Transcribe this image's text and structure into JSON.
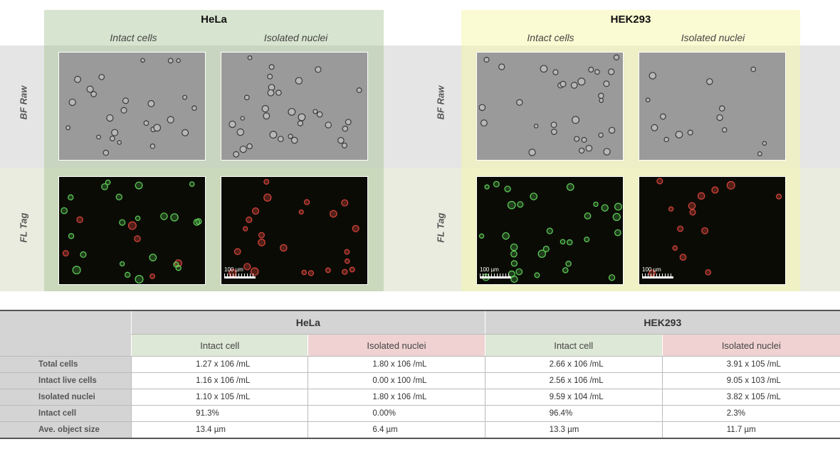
{
  "figure": {
    "panels": [
      {
        "title": "HeLa",
        "col_heads": [
          "Intact cells",
          "Isolated nuclei"
        ]
      },
      {
        "title": "HEK293",
        "col_heads": [
          "Intact cells",
          "Isolated nuclei"
        ]
      }
    ],
    "row_labels": {
      "bf": "BF Raw",
      "fl": "FL Tag"
    },
    "scale_label": "100 µm",
    "colors": {
      "green_marker": "#5fd35a",
      "red_marker": "#d9453c",
      "bf_background": "#9a9a9a"
    }
  },
  "table": {
    "groups": [
      "HeLa",
      "HEK293"
    ],
    "subheads": [
      "Intact cell",
      "Isolated nuclei",
      "Intact cell",
      "Isolated nuclei"
    ],
    "rows": [
      {
        "label": "Total cells",
        "values": [
          "1.27 x 106 /mL",
          "1.80 x 106 /mL",
          "2.66 x 106 /mL",
          "3.91 x 105 /mL"
        ]
      },
      {
        "label": "Intact live cells",
        "values": [
          "1.16 x 106 /mL",
          "0.00 x 100 /mL",
          "2.56 x 106 /mL",
          "9.05 x 103 /mL"
        ]
      },
      {
        "label": "Isolated nuclei",
        "values": [
          "1.10 x 105 /mL",
          "1.80 x 106 /mL",
          "9.59 x 104 /mL",
          "3.82 x 105 /mL"
        ]
      },
      {
        "label": "Intact cell",
        "values": [
          "91.3%",
          "0.00%",
          "96.4%",
          "2.3%"
        ]
      },
      {
        "label": "Ave. object size",
        "values": [
          "13.4 µm",
          "6.4 µm",
          "13.3 µm",
          "11.7 µm"
        ]
      }
    ]
  }
}
